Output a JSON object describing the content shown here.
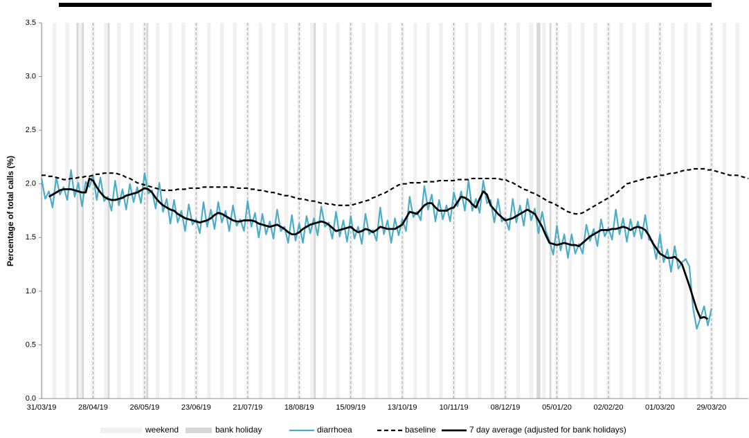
{
  "chart_data": {
    "type": "line",
    "y_label": "Percentage of total calls (%)",
    "ylim": [
      0,
      3.5
    ],
    "yticks": [
      {
        "value": 0,
        "label": "0.0"
      },
      0.5,
      {
        "value": 1,
        "label": "1.0"
      },
      1.5,
      {
        "value": 2,
        "label": "2.0"
      },
      2.5,
      {
        "value": 3,
        "label": "3.0"
      },
      3.5
    ],
    "categories": [
      "31/03/19",
      null,
      null,
      null,
      null,
      null,
      null,
      null,
      null,
      null,
      null,
      null,
      null,
      null,
      "28/04/19",
      null,
      null,
      null,
      null,
      null,
      null,
      null,
      null,
      null,
      null,
      null,
      null,
      null,
      "26/05/19",
      null,
      null,
      null,
      null,
      null,
      null,
      null,
      null,
      null,
      null,
      null,
      null,
      null,
      "23/06/19",
      null,
      null,
      null,
      null,
      null,
      null,
      null,
      null,
      null,
      null,
      null,
      null,
      null,
      "21/07/19",
      null,
      null,
      null,
      null,
      null,
      null,
      null,
      null,
      null,
      null,
      null,
      null,
      null,
      "18/08/19",
      null,
      null,
      null,
      null,
      null,
      null,
      null,
      null,
      null,
      null,
      null,
      null,
      null,
      "15/09/19",
      null,
      null,
      null,
      null,
      null,
      null,
      null,
      null,
      null,
      null,
      null,
      null,
      null,
      "13/10/19",
      null,
      null,
      null,
      null,
      null,
      null,
      null,
      null,
      null,
      null,
      null,
      null,
      null,
      "10/11/19",
      null,
      null,
      null,
      null,
      null,
      null,
      null,
      null,
      null,
      null,
      null,
      null,
      null,
      "08/12/19",
      null,
      null,
      null,
      null,
      null,
      null,
      null,
      null,
      null,
      null,
      null,
      null,
      null,
      "05/01/20",
      null,
      null,
      null,
      null,
      null,
      null,
      null,
      null,
      null,
      null,
      null,
      null,
      null,
      "02/02/20",
      null,
      null,
      null,
      null,
      null,
      null,
      null,
      null,
      null,
      null,
      null,
      null,
      null,
      "01/03/20",
      null,
      null,
      null,
      null,
      null,
      null,
      null,
      null,
      null,
      null,
      null,
      null,
      null,
      "29/03/20",
      null,
      null,
      null,
      null,
      null,
      null,
      null,
      null,
      null,
      null
    ],
    "weekend": {
      "label": "weekend",
      "color": "#f0f0f0"
    },
    "bank_holiday": {
      "label": "bank holiday",
      "color": "#d6d6d6",
      "dates": [
        "19/04/19",
        "22/04/19",
        "06/05/19",
        "27/05/19",
        "26/08/19",
        "25/12/19",
        "26/12/19",
        "01/01/20"
      ]
    },
    "series": [
      {
        "name": "diarrhoea",
        "color": "#4bacc6",
        "style": "solid",
        "values": [
          2.05,
          1.86,
          1.93,
          1.78,
          2.06,
          1.9,
          1.97,
          1.85,
          2.13,
          1.88,
          2.01,
          1.79,
          2.02,
          1.97,
          2.08,
          1.85,
          2.06,
          1.84,
          1.88,
          1.75,
          2.03,
          1.8,
          1.95,
          1.76,
          2.0,
          1.83,
          1.97,
          1.82,
          2.1,
          1.91,
          1.94,
          1.77,
          2.01,
          1.74,
          1.86,
          1.63,
          1.85,
          1.64,
          1.75,
          1.56,
          1.81,
          1.62,
          1.67,
          1.54,
          1.83,
          1.6,
          1.76,
          1.58,
          1.83,
          1.64,
          1.75,
          1.56,
          1.8,
          1.61,
          1.67,
          1.56,
          1.84,
          1.6,
          1.73,
          1.5,
          1.72,
          1.53,
          1.65,
          1.49,
          1.76,
          1.56,
          1.6,
          1.45,
          1.71,
          1.47,
          1.63,
          1.45,
          1.7,
          1.54,
          1.68,
          1.52,
          1.79,
          1.6,
          1.64,
          1.49,
          1.74,
          1.51,
          1.66,
          1.46,
          1.7,
          1.49,
          1.6,
          1.44,
          1.72,
          1.53,
          1.57,
          1.47,
          1.78,
          1.53,
          1.66,
          1.45,
          1.68,
          1.52,
          1.67,
          1.56,
          1.88,
          1.69,
          1.74,
          1.66,
          1.98,
          1.76,
          1.9,
          1.65,
          1.85,
          1.67,
          1.8,
          1.65,
          1.92,
          1.79,
          1.93,
          1.75,
          2.03,
          1.75,
          1.86,
          1.73,
          2.03,
          1.82,
          1.85,
          1.64,
          1.86,
          1.65,
          1.68,
          1.57,
          1.86,
          1.64,
          1.8,
          1.61,
          1.86,
          1.66,
          1.77,
          1.54,
          1.74,
          1.56,
          1.47,
          1.34,
          1.61,
          1.38,
          1.53,
          1.31,
          1.53,
          1.35,
          1.44,
          1.35,
          1.62,
          1.47,
          1.58,
          1.42,
          1.67,
          1.51,
          1.59,
          1.48,
          1.76,
          1.53,
          1.68,
          1.46,
          1.67,
          1.51,
          1.65,
          1.49,
          1.71,
          1.48,
          1.47,
          1.3,
          1.53,
          1.27,
          1.39,
          1.18,
          1.42,
          1.21,
          1.27,
          1.3,
          1.23,
          0.84,
          0.65,
          0.75,
          0.86,
          0.68,
          0.84,
          null,
          null,
          null,
          null,
          null,
          null,
          null,
          null,
          null,
          null
        ]
      },
      {
        "name": "baseline",
        "color": "#000000",
        "style": "dashed",
        "values": [
          2.08,
          2.08,
          2.07,
          2.07,
          2.06,
          2.05,
          2.04,
          2.04,
          2.05,
          2.05,
          2.06,
          2.06,
          2.07,
          2.07,
          2.08,
          2.09,
          2.09,
          2.1,
          2.1,
          2.1,
          2.1,
          2.09,
          2.08,
          2.06,
          2.05,
          2.03,
          2.01,
          2.0,
          1.99,
          1.98,
          1.97,
          1.96,
          1.95,
          1.94,
          1.94,
          1.94,
          1.94,
          1.95,
          1.95,
          1.95,
          1.96,
          1.96,
          1.96,
          1.96,
          1.97,
          1.97,
          1.97,
          1.97,
          1.97,
          1.97,
          1.97,
          1.97,
          1.97,
          1.96,
          1.96,
          1.96,
          1.96,
          1.95,
          1.95,
          1.94,
          1.94,
          1.93,
          1.92,
          1.92,
          1.91,
          1.9,
          1.89,
          1.89,
          1.88,
          1.87,
          1.86,
          1.86,
          1.85,
          1.84,
          1.84,
          1.83,
          1.82,
          1.82,
          1.81,
          1.81,
          1.8,
          1.8,
          1.8,
          1.8,
          1.8,
          1.81,
          1.82,
          1.83,
          1.84,
          1.85,
          1.87,
          1.88,
          1.9,
          1.91,
          1.93,
          1.95,
          1.97,
          1.99,
          2.0,
          2.0,
          2.01,
          2.01,
          2.01,
          2.01,
          2.02,
          2.02,
          2.02,
          2.02,
          2.03,
          2.03,
          2.03,
          2.03,
          2.03,
          2.04,
          2.04,
          2.04,
          2.04,
          2.05,
          2.05,
          2.05,
          2.05,
          2.05,
          2.05,
          2.05,
          2.05,
          2.04,
          2.04,
          2.02,
          2.01,
          1.99,
          1.97,
          1.95,
          1.94,
          1.92,
          1.91,
          1.89,
          1.87,
          1.85,
          1.83,
          1.82,
          1.8,
          1.78,
          1.76,
          1.74,
          1.73,
          1.72,
          1.72,
          1.73,
          1.75,
          1.77,
          1.79,
          1.81,
          1.83,
          1.85,
          1.87,
          1.89,
          1.91,
          1.94,
          1.97,
          2.0,
          2.01,
          2.02,
          2.03,
          2.04,
          2.05,
          2.06,
          2.06,
          2.07,
          2.08,
          2.08,
          2.09,
          2.1,
          2.1,
          2.11,
          2.12,
          2.13,
          2.13,
          2.14,
          2.14,
          2.14,
          2.14,
          2.13,
          2.13,
          2.12,
          2.11,
          2.1,
          2.09,
          2.08,
          2.08,
          2.08,
          2.07,
          2.06,
          2.05
        ]
      },
      {
        "name": "7 day average (adjusted for bank holidays)",
        "color": "#000000",
        "style": "bold",
        "values": [
          null,
          null,
          1.88,
          1.9,
          1.92,
          1.94,
          1.95,
          1.95,
          1.95,
          1.94,
          1.93,
          1.92,
          1.92,
          2.05,
          2.03,
          1.97,
          1.92,
          1.88,
          1.86,
          1.85,
          1.85,
          1.86,
          1.87,
          1.89,
          1.9,
          1.91,
          1.92,
          1.94,
          1.96,
          1.95,
          1.92,
          1.87,
          1.83,
          1.8,
          1.78,
          1.76,
          1.75,
          1.72,
          1.7,
          1.68,
          1.67,
          1.66,
          1.65,
          1.64,
          1.65,
          1.66,
          1.68,
          1.71,
          1.73,
          1.72,
          1.7,
          1.68,
          1.66,
          1.65,
          1.65,
          1.66,
          1.66,
          1.66,
          1.65,
          1.63,
          1.62,
          1.61,
          1.6,
          1.61,
          1.62,
          1.6,
          1.58,
          1.55,
          1.53,
          1.53,
          1.55,
          1.58,
          1.6,
          1.62,
          1.63,
          1.64,
          1.65,
          1.64,
          1.62,
          1.59,
          1.56,
          1.57,
          1.58,
          1.59,
          1.6,
          1.57,
          1.55,
          1.56,
          1.58,
          1.57,
          1.55,
          1.57,
          1.6,
          1.59,
          1.58,
          1.58,
          1.58,
          1.6,
          1.62,
          1.68,
          1.74,
          1.73,
          1.72,
          1.76,
          1.8,
          1.82,
          1.82,
          1.78,
          1.75,
          1.75,
          1.75,
          1.77,
          1.78,
          1.83,
          1.88,
          1.87,
          1.85,
          1.81,
          1.78,
          1.86,
          1.93,
          1.9,
          1.8,
          1.76,
          1.72,
          1.69,
          1.66,
          1.67,
          1.68,
          1.7,
          1.72,
          1.74,
          1.76,
          1.74,
          1.72,
          1.66,
          1.6,
          1.52,
          1.45,
          1.44,
          1.43,
          1.44,
          1.45,
          1.44,
          1.43,
          1.43,
          1.42,
          1.45,
          1.48,
          1.51,
          1.53,
          1.55,
          1.57,
          1.57,
          1.57,
          1.58,
          1.58,
          1.59,
          1.6,
          1.59,
          1.57,
          1.59,
          1.6,
          1.59,
          1.57,
          1.52,
          1.45,
          1.4,
          1.35,
          1.33,
          1.31,
          1.31,
          1.32,
          1.29,
          1.25,
          1.15,
          1.05,
          0.94,
          0.83,
          0.75,
          0.76,
          0.74,
          null,
          null,
          null,
          null,
          null,
          null,
          null,
          null,
          null,
          null,
          null
        ]
      }
    ]
  }
}
